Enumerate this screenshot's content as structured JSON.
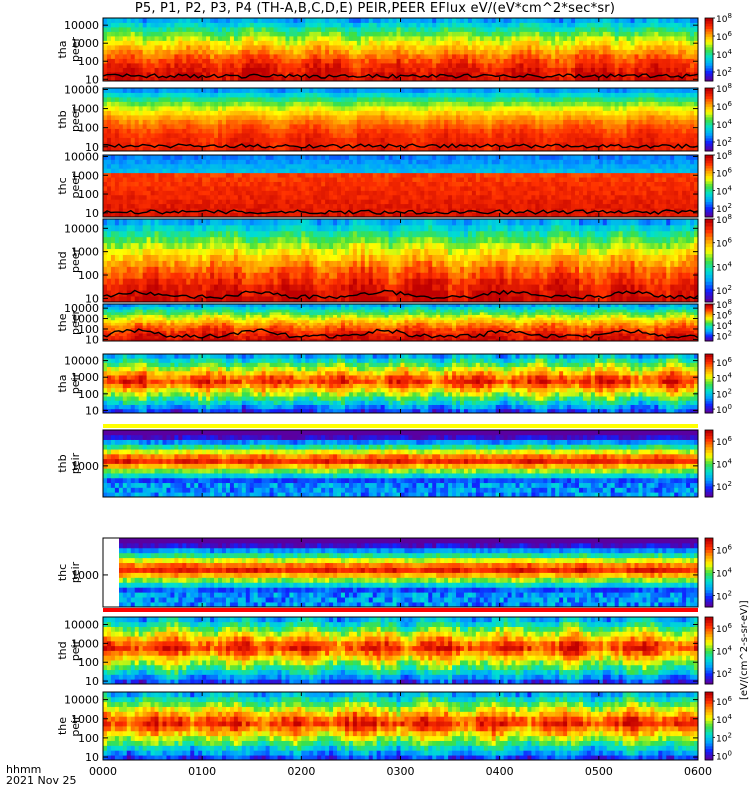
{
  "title": "P5, P1, P2, P3, P4 (TH-A,B,C,D,E) PEIR,PEER EFlux eV/(eV*cm^2*sec*sr)",
  "time_label": "hhmm",
  "date_label": "2021 Nov 25",
  "colorbar_units": "[eV/(cm^2-s-sr-eV)]",
  "colors": {
    "scale": [
      "#5a00a0",
      "#1020ff",
      "#00a0ff",
      "#00e0d0",
      "#40e040",
      "#ffff00",
      "#ffa000",
      "#ff3000",
      "#c00000"
    ],
    "trace": "#000000",
    "gap": "#ffffff",
    "flag_red": "#ff0000",
    "flag_yellow": "#ffff00"
  },
  "chart_data": {
    "type": "heatmap",
    "xlabel": "hhmm",
    "x_ticks": [
      "0000",
      "0100",
      "0200",
      "0300",
      "0400",
      "0500",
      "0600"
    ],
    "xlim": [
      "0000",
      "0600"
    ],
    "yscale": "log",
    "panels": [
      {
        "probe": "tha",
        "species": "peer",
        "y_ticks": [
          "10",
          "100",
          "1000",
          "10000"
        ],
        "ylim": [
          8,
          25000
        ],
        "cbar_ticks": [
          "10^2",
          "10^4",
          "10^6",
          "10^8"
        ],
        "cbar_range": [
          1,
          8
        ],
        "top_flag": "none"
      },
      {
        "probe": "thb",
        "species": "peer",
        "y_ticks": [
          "10",
          "100",
          "1000",
          "10000"
        ],
        "ylim": [
          6,
          12000
        ],
        "cbar_ticks": [
          "10^2",
          "10^4",
          "10^6",
          "10^8"
        ],
        "cbar_range": [
          1,
          8
        ],
        "top_flag": "none"
      },
      {
        "probe": "thc",
        "species": "peer",
        "y_ticks": [
          "10",
          "100",
          "1000",
          "10000"
        ],
        "ylim": [
          6,
          12000
        ],
        "cbar_ticks": [
          "10^2",
          "10^4",
          "10^6",
          "10^8"
        ],
        "cbar_range": [
          1,
          8
        ],
        "top_flag": "none"
      },
      {
        "probe": "thd",
        "species": "peer",
        "y_ticks": [
          "10",
          "100",
          "1000",
          "10000"
        ],
        "ylim": [
          7,
          25000
        ],
        "cbar_ticks": [
          "10^2",
          "10^4",
          "10^6",
          "10^8"
        ],
        "cbar_range": [
          1,
          8
        ],
        "top_flag": "none"
      },
      {
        "probe": "the",
        "species": "peer",
        "y_ticks": [
          "10",
          "100",
          "1000",
          "10000"
        ],
        "ylim": [
          7,
          25000
        ],
        "cbar_ticks": [
          "10^2",
          "10^4",
          "10^6",
          "10^8"
        ],
        "cbar_range": [
          1,
          8
        ],
        "top_flag": "none"
      },
      {
        "probe": "tha",
        "species": "peir",
        "y_ticks": [
          "10",
          "100",
          "1000",
          "10000"
        ],
        "ylim": [
          7,
          25000
        ],
        "cbar_ticks": [
          "10^0",
          "10^2",
          "10^4",
          "10^6"
        ],
        "cbar_range": [
          -0.5,
          7
        ],
        "top_flag": "none"
      },
      {
        "probe": "thb",
        "species": "peir",
        "y_ticks": [
          "1000"
        ],
        "ylim": [
          300,
          4000
        ],
        "cbar_ticks": [
          "10^2",
          "10^4",
          "10^6"
        ],
        "cbar_range": [
          1,
          7
        ],
        "top_flag": "yellow"
      },
      {
        "probe": "thc",
        "species": "peir",
        "y_ticks": [
          "1000"
        ],
        "ylim": [
          300,
          4000
        ],
        "cbar_ticks": [
          "10^2",
          "10^4",
          "10^6"
        ],
        "cbar_range": [
          1,
          7
        ],
        "top_flag": "none"
      },
      {
        "probe": "thd",
        "species": "peir",
        "y_ticks": [
          "10",
          "100",
          "1000",
          "10000"
        ],
        "ylim": [
          7,
          25000
        ],
        "cbar_ticks": [
          "10^2",
          "10^4",
          "10^6"
        ],
        "cbar_range": [
          1,
          7
        ],
        "top_flag": "red"
      },
      {
        "probe": "the",
        "species": "peir",
        "y_ticks": [
          "10",
          "100",
          "1000",
          "10000"
        ],
        "ylim": [
          7,
          25000
        ],
        "cbar_ticks": [
          "10^0",
          "10^2",
          "10^4",
          "10^6"
        ],
        "cbar_range": [
          -0.5,
          7
        ],
        "top_flag": "none"
      }
    ]
  }
}
